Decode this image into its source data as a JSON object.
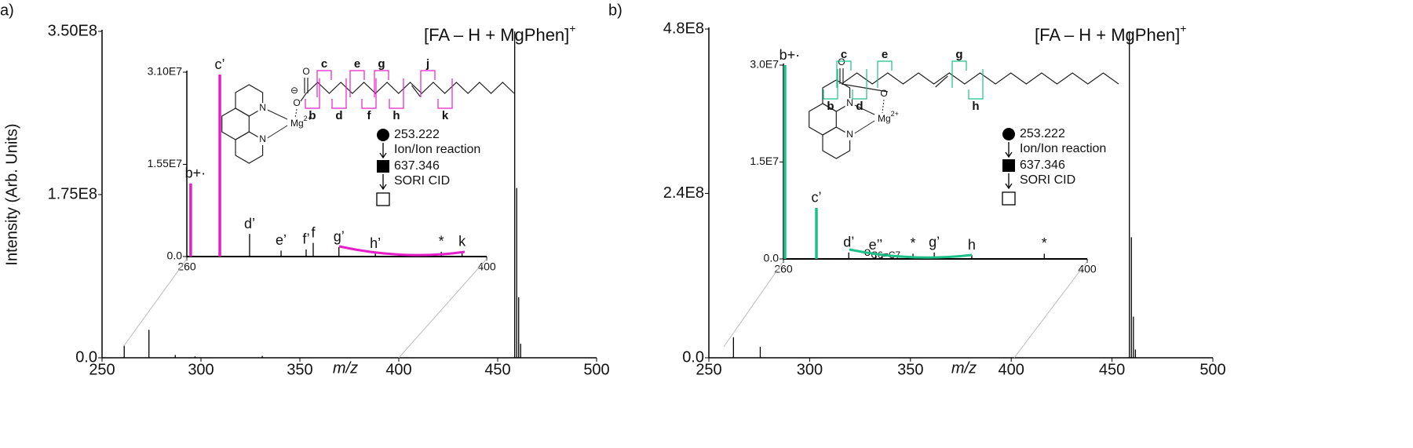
{
  "chart_data": [
    {
      "type": "bar",
      "panel_label": "a)",
      "title": "[FA – H + MgPhen]",
      "title_sup": "+",
      "y_label": "Intensity (Arb. Units)",
      "x_label": "m/z",
      "x": [
        261.2,
        273.7,
        287,
        297,
        331,
        458.6,
        459.6,
        460.6,
        461.6
      ],
      "values": [
        13500000,
        30000000,
        3000000,
        1500000,
        2000000,
        350000000,
        182000000,
        65000000,
        15000000
      ],
      "color": "#000000",
      "xlim": [
        250,
        500
      ],
      "xticks": [
        250,
        300,
        350,
        400,
        450,
        500
      ],
      "ylim": [
        0,
        350000000
      ],
      "yticks": [
        {
          "value": 0,
          "label": "0.0"
        },
        {
          "value": 175000000,
          "label": "1.75E8"
        },
        {
          "value": 350000000,
          "label": "3.50E8"
        }
      ]
    },
    {
      "type": "bar",
      "x": [
        261.8,
        275.4,
        289.3,
        304,
        315.7,
        319,
        331,
        348,
        378.8,
        388.5
      ],
      "values": [
        12300000,
        30600000,
        3800000,
        1000000,
        1200000,
        2300000,
        1600000,
        500000,
        800000,
        800000
      ],
      "colors": [
        "#e61ec8",
        "#e61ec8",
        "#000000",
        "#000000",
        "#000000",
        "#000000",
        "#000000",
        "#000000",
        "#000000",
        "#000000"
      ],
      "peak_labels": [
        "b+·",
        "c’",
        "d’",
        "e’",
        "f’",
        "f",
        "g’",
        "h’",
        "*",
        "k"
      ],
      "highlight_color": "#e61ec8",
      "xlim": [
        260,
        400
      ],
      "xticks": [
        260,
        400
      ],
      "ylim": [
        0,
        31000000
      ],
      "yticks": [
        {
          "value": 0,
          "label": "0.0"
        },
        {
          "value": 15500000,
          "label": "1.55E7"
        },
        {
          "value": 31000000,
          "label": "3.10E7"
        }
      ],
      "scheme": [
        "253.222",
        "Ion/Ion reaction",
        "637.346",
        "SORI CID"
      ],
      "structure": {
        "atoms": [
          "N",
          "N",
          "Mg",
          "2+",
          "O",
          "O"
        ],
        "charge": "⊖",
        "top_labels": [
          "c",
          "e",
          "g",
          "j"
        ],
        "bottom_labels": [
          "b",
          "d",
          "f",
          "h",
          "k"
        ]
      }
    },
    {
      "type": "bar",
      "panel_label": "b)",
      "title": "[FA – H + MgPhen]",
      "title_sup": "+",
      "x_label": "m/z",
      "x": [
        262.2,
        275.5,
        458.6,
        459.6,
        460.6,
        461.6
      ],
      "values": [
        30000000,
        16000000,
        475000000,
        176000000,
        60000000,
        12000000
      ],
      "color": "#000000",
      "xlim": [
        250,
        500
      ],
      "xticks": [
        250,
        300,
        350,
        400,
        450,
        500
      ],
      "ylim": [
        0,
        480000000
      ],
      "yticks": [
        {
          "value": 0,
          "label": "0.0"
        },
        {
          "value": 240000000,
          "label": "2.4E8"
        },
        {
          "value": 480000000,
          "label": "4.8E8"
        }
      ]
    },
    {
      "type": "bar",
      "x": [
        260.7,
        275.2,
        290.1,
        302.5,
        305.5,
        319.7,
        329.5,
        346.8,
        380.2
      ],
      "values": [
        30000000,
        7900000,
        1000000,
        600000,
        500000,
        800000,
        1000000,
        600000,
        800000
      ],
      "colors": [
        "#1fbf8a",
        "#1fbf8a",
        "#000000",
        "#000000",
        "#000000",
        "#000000",
        "#000000",
        "#000000",
        "#000000"
      ],
      "peak_labels": [
        "b+·",
        "c’",
        "d’",
        "e’’",
        {
          "text": "e",
          "sub": "C6=C7"
        },
        "*",
        "g’",
        "h",
        "*"
      ],
      "highlight_color": "#1fbf8a",
      "xlim": [
        260,
        400
      ],
      "xticks": [
        260,
        400
      ],
      "ylim": [
        0,
        30000000
      ],
      "yticks": [
        {
          "value": 0,
          "label": "0.0"
        },
        {
          "value": 15000000,
          "label": "1.5E7"
        },
        {
          "value": 30000000,
          "label": "3.0E7"
        }
      ],
      "scheme": [
        "253.222",
        "Ion/Ion reaction",
        "637.346",
        "SORI CID"
      ],
      "structure": {
        "atoms": [
          "N",
          "N",
          "Mg",
          "2+",
          "O",
          "O"
        ],
        "top_labels": [
          "c",
          "e",
          "g"
        ],
        "bottom_labels": [
          "b",
          "d",
          "h"
        ]
      }
    }
  ]
}
